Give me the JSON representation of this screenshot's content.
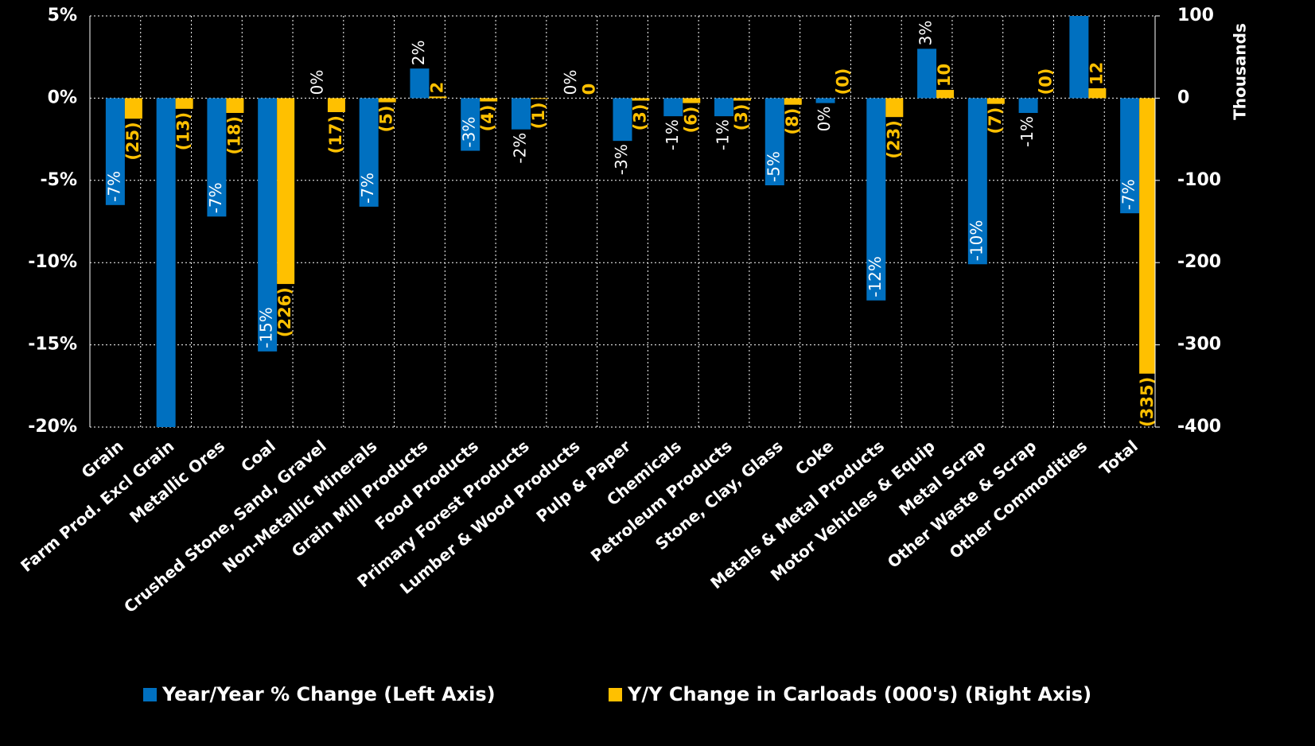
{
  "chart_data": {
    "type": "bar",
    "categories": [
      "Grain",
      "Farm Prod. Excl Grain",
      "Metallic Ores",
      "Coal",
      "Crushed Stone, Sand, Gravel",
      "Non-Metallic Minerals",
      "Grain Mill Products",
      "Food Products",
      "Primary Forest Products",
      "Lumber & Wood Products",
      "Pulp & Paper",
      "Chemicals",
      "Petroleum Products",
      "Stone, Clay, Glass",
      "Coke",
      "Metals & Metal Products",
      "Motor Vehicles & Equip",
      "Metal Scrap",
      "Other Waste & Scrap",
      "Other Commodities",
      "Total"
    ],
    "series": [
      {
        "name": "Year/Year % Change (Left Axis)",
        "color": "#0070c0",
        "axis": "y",
        "values": [
          -6.5,
          -20,
          -7.2,
          -15.4,
          0,
          -6.6,
          1.8,
          -3.2,
          -1.9,
          0,
          -2.6,
          -1.1,
          -1.1,
          -5.3,
          -0.3,
          -12.3,
          3.0,
          -10.1,
          -0.9,
          5,
          -7.0
        ],
        "value_labels": [
          "-7%",
          null,
          "-7%",
          "-15%",
          "0%",
          "-7%",
          "2%",
          "-3%",
          "-2%",
          "0%",
          "-3%",
          "-1%",
          "-1%",
          "-5%",
          "0%",
          "-12%",
          "3%",
          "-10%",
          "-1%",
          null,
          "-7%"
        ]
      },
      {
        "name": "Y/Y Change in Carloads (000's) (Right Axis)",
        "color": "#ffc000",
        "axis": "y2",
        "values": [
          -25,
          -13,
          -18,
          -226,
          -17,
          -5,
          2,
          -4,
          -1,
          0,
          -3,
          -6,
          -3,
          -8,
          0,
          -23,
          10,
          -7,
          0,
          12,
          -335
        ],
        "value_labels": [
          "(25)",
          "(13)",
          "(18)",
          "(226)",
          "(17)",
          "(5)",
          "2",
          "(4)",
          "(1)",
          "0",
          "(3)",
          "(6)",
          "(3)",
          "(8)",
          "(0)",
          "(23)",
          "10",
          "(7)",
          "(0)",
          "12",
          "(335)"
        ]
      }
    ],
    "ylim": [
      -20,
      5
    ],
    "yticks": [
      {
        "value": -20,
        "label": "-20%"
      },
      {
        "value": -15,
        "label": "-15%"
      },
      {
        "value": -10,
        "label": "-10%"
      },
      {
        "value": -5,
        "label": "-5%"
      },
      {
        "value": 0,
        "label": "0%"
      },
      {
        "value": 5,
        "label": "5%"
      }
    ],
    "y2lim": [
      -400,
      100
    ],
    "y2ticks": [
      -400,
      -300,
      -200,
      -100,
      0,
      100
    ],
    "y2label": "Thousands",
    "grid": true,
    "legend": "bottom"
  }
}
